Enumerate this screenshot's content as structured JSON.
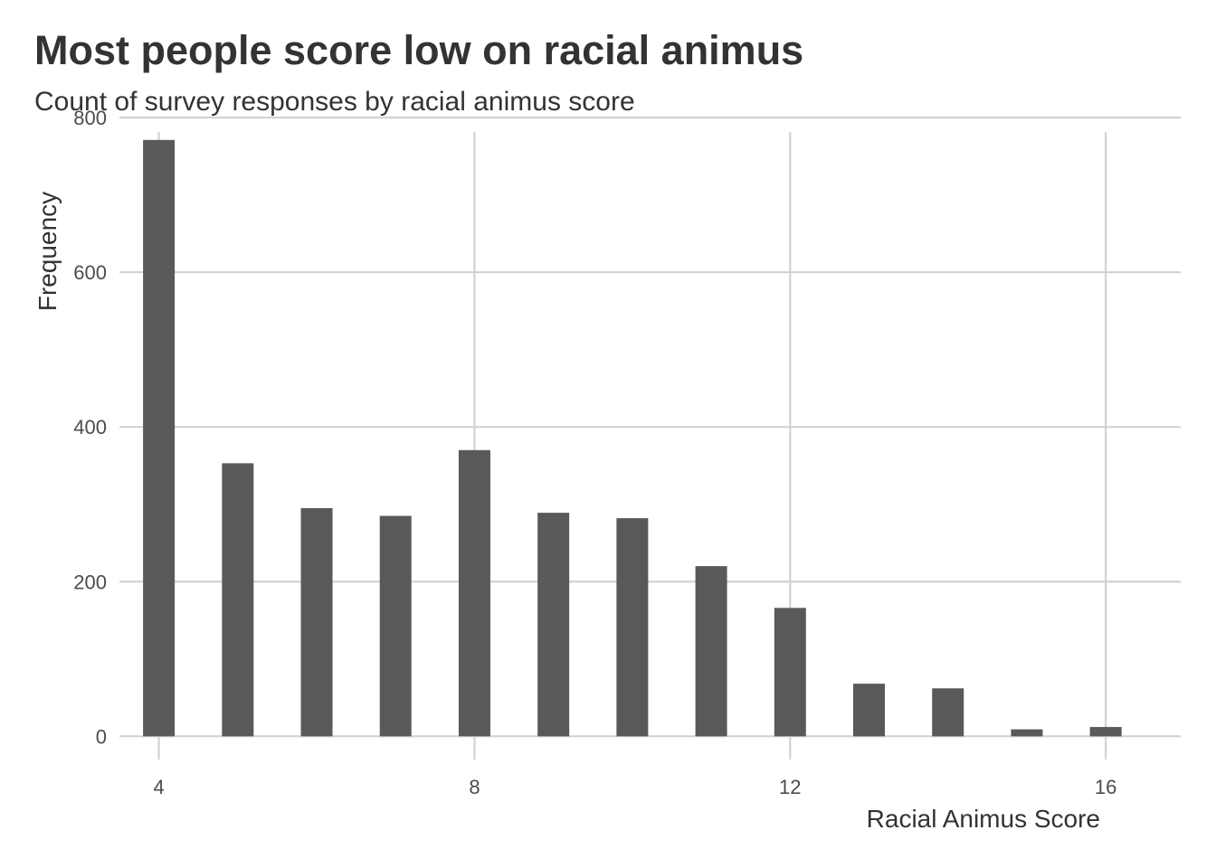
{
  "chart_data": {
    "type": "bar",
    "title": "Most people score low on racial animus",
    "subtitle": "Count of survey responses by racial animus score",
    "xlabel": "Racial Animus Score",
    "ylabel": "Frequency",
    "x": [
      4,
      5,
      6,
      7,
      8,
      9,
      10,
      11,
      12,
      13,
      14,
      15,
      16
    ],
    "values": [
      771,
      353,
      295,
      285,
      370,
      289,
      282,
      220,
      166,
      68,
      62,
      9,
      12
    ],
    "xlim": [
      3.5,
      16.95
    ],
    "ylim": [
      -30,
      800
    ],
    "xticks": [
      4,
      8,
      12,
      16
    ],
    "yticks": [
      0,
      200,
      400,
      600,
      800
    ],
    "bar_color": "#595959",
    "grid": true
  }
}
